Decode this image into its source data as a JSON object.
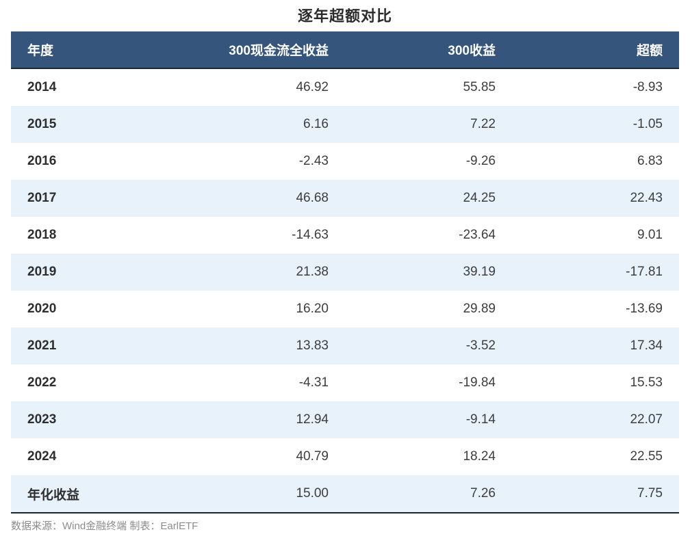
{
  "chart_data": {
    "type": "table",
    "title": "逐年超额对比",
    "columns": [
      "年度",
      "300现金流全收益",
      "300收益",
      "超额"
    ],
    "rows": [
      [
        "2014",
        "46.92",
        "55.85",
        "-8.93"
      ],
      [
        "2015",
        "6.16",
        "7.22",
        "-1.05"
      ],
      [
        "2016",
        "-2.43",
        "-9.26",
        "6.83"
      ],
      [
        "2017",
        "46.68",
        "24.25",
        "22.43"
      ],
      [
        "2018",
        "-14.63",
        "-23.64",
        "9.01"
      ],
      [
        "2019",
        "21.38",
        "39.19",
        "-17.81"
      ],
      [
        "2020",
        "16.20",
        "29.89",
        "-13.69"
      ],
      [
        "2021",
        "13.83",
        "-3.52",
        "17.34"
      ],
      [
        "2022",
        "-4.31",
        "-19.84",
        "15.53"
      ],
      [
        "2023",
        "12.94",
        "-9.14",
        "22.07"
      ],
      [
        "2024",
        "40.79",
        "18.24",
        "22.55"
      ],
      [
        "年化收益",
        "15.00",
        "7.26",
        "7.75"
      ]
    ],
    "layout": {
      "row_striping": "alternate",
      "first_data_row_background": "white",
      "numeric_alignment": "right"
    }
  },
  "footer": {
    "source_note": "数据来源：Wind金融终端 制表：EarlETF"
  },
  "colors": {
    "header_bg": "#35557D",
    "header_text": "#FFFFFF",
    "row_alt": "#E8F2FB",
    "border_dark": "#1A2634",
    "title_text": "#2B2B2B",
    "footer_text": "#8C8C8C"
  }
}
